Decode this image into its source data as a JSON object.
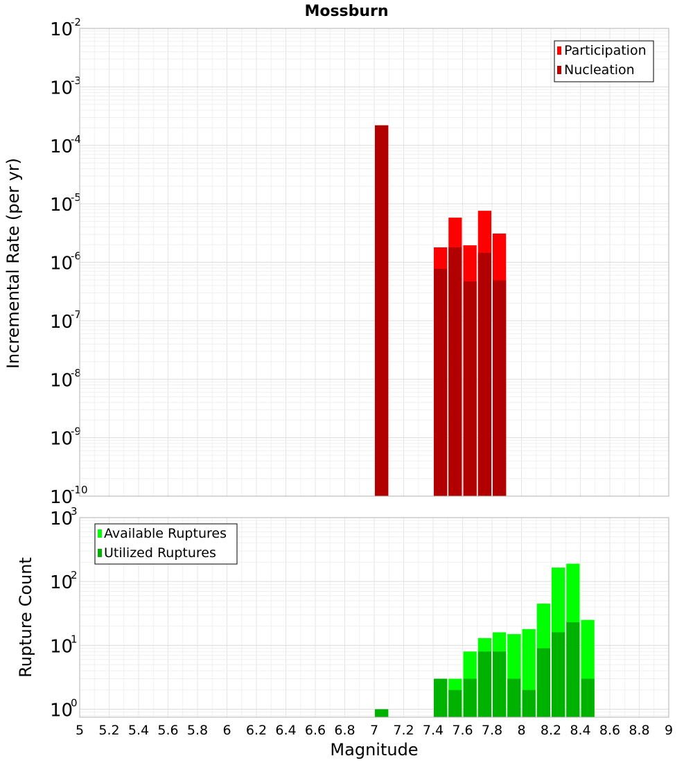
{
  "chart_data": [
    {
      "type": "bar",
      "title": "Mossburn",
      "ylabel": "Incremental Rate (per yr)",
      "xlabel": "",
      "xlim": [
        5,
        9
      ],
      "ylim": [
        1e-10,
        0.01
      ],
      "yscale": "log",
      "bar_width": 0.1,
      "ytick_labels": [
        {
          "exp": -10,
          "base": "10",
          "sup": "-10"
        },
        {
          "exp": -9,
          "base": "10",
          "sup": "-9"
        },
        {
          "exp": -8,
          "base": "10",
          "sup": "-8"
        },
        {
          "exp": -7,
          "base": "10",
          "sup": "-7"
        },
        {
          "exp": -6,
          "base": "10",
          "sup": "-6"
        },
        {
          "exp": -5,
          "base": "10",
          "sup": "-5"
        },
        {
          "exp": -4,
          "base": "10",
          "sup": "-4"
        },
        {
          "exp": -3,
          "base": "10",
          "sup": "-3"
        },
        {
          "exp": -2,
          "base": "10",
          "sup": "-2"
        }
      ],
      "legend_position": "top-right",
      "series": [
        {
          "name": "Participation",
          "color": "#ff0000",
          "x": [
            7.05,
            7.45,
            7.55,
            7.65,
            7.75,
            7.85
          ],
          "values": [
            0.00022,
            1.8e-06,
            5.8e-06,
            1.95e-06,
            7.6e-06,
            3.1e-06
          ]
        },
        {
          "name": "Nucleation",
          "color": "#b20000",
          "x": [
            7.05,
            7.45,
            7.55,
            7.65,
            7.75,
            7.85
          ],
          "values": [
            0.00022,
            7.7e-07,
            1.8e-06,
            4.7e-07,
            1.45e-06,
            4.9e-07
          ]
        }
      ]
    },
    {
      "type": "bar",
      "title": "",
      "ylabel": "Rupture Count",
      "xlabel": "Magnitude",
      "xlim": [
        5,
        9
      ],
      "ylim": [
        0.75,
        1000
      ],
      "yscale": "log",
      "bar_width": 0.1,
      "x_ticks": [
        "5",
        "5.2",
        "5.4",
        "5.6",
        "5.8",
        "6",
        "6.2",
        "6.4",
        "6.6",
        "6.8",
        "7",
        "7.2",
        "7.4",
        "7.6",
        "7.8",
        "8",
        "8.2",
        "8.4",
        "8.6",
        "8.8",
        "9"
      ],
      "ytick_labels": [
        {
          "exp": 0,
          "base": "10",
          "sup": "0"
        },
        {
          "exp": 1,
          "base": "10",
          "sup": "1"
        },
        {
          "exp": 2,
          "base": "10",
          "sup": "2"
        },
        {
          "exp": 3,
          "base": "10",
          "sup": "3"
        }
      ],
      "legend_position": "top-left",
      "series": [
        {
          "name": "Available Ruptures",
          "color": "#00ff00",
          "x": [
            7.05,
            7.45,
            7.55,
            7.65,
            7.75,
            7.85,
            7.95,
            8.05,
            8.15,
            8.25,
            8.35,
            8.45
          ],
          "values": [
            1,
            3,
            3,
            8,
            13,
            16,
            15,
            18,
            45,
            165,
            190,
            25
          ]
        },
        {
          "name": "Utilized Ruptures",
          "color": "#00b200",
          "x": [
            7.05,
            7.45,
            7.55,
            7.65,
            7.75,
            7.85,
            7.95,
            8.05,
            8.15,
            8.25,
            8.35,
            8.45
          ],
          "values": [
            1,
            3,
            2,
            3,
            8,
            8,
            3,
            2,
            9,
            16,
            23,
            3
          ]
        }
      ]
    }
  ]
}
